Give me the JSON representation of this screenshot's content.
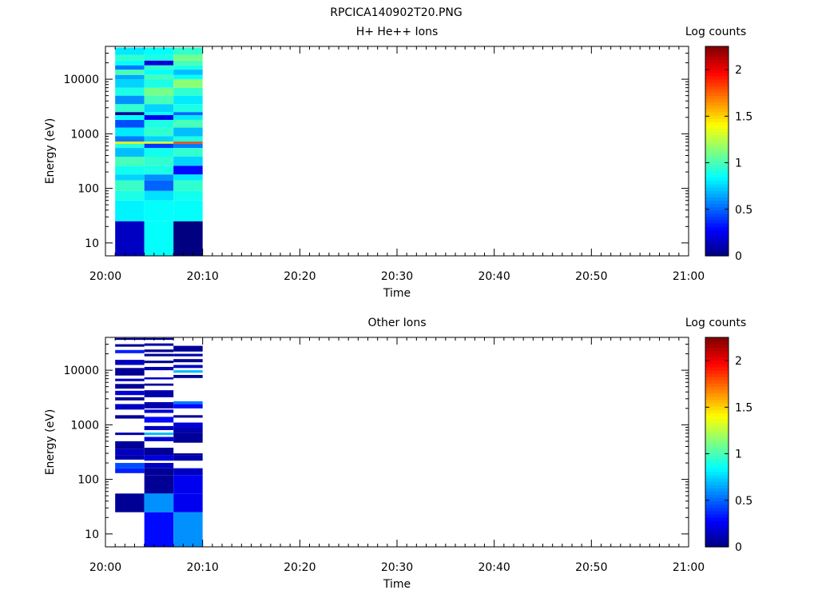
{
  "figure": {
    "title": "RPCICA140902T20.PNG"
  },
  "chart_data": [
    {
      "type": "heatmap",
      "title": "H+ He++ Ions",
      "xlabel": "Time",
      "ylabel": "Energy (eV)",
      "x_tick_labels": [
        "20:00",
        "20:10",
        "20:20",
        "20:30",
        "20:40",
        "20:50",
        "21:00"
      ],
      "xlim": [
        "20:00",
        "21:00"
      ],
      "y_scale": "log",
      "y_tick_labels": [
        "10",
        "100",
        "1000",
        "10000"
      ],
      "ylim": [
        5.8,
        40000
      ],
      "colorbar": {
        "label": "Log counts",
        "range": [
          0,
          2.25
        ],
        "tick_labels": [
          "0",
          "0.5",
          "1",
          "1.5",
          "2"
        ],
        "colormap": "jet"
      },
      "time_bins": [
        "20:01 - 20:04",
        "20:04 - 20:07",
        "20:07 - 20:10"
      ],
      "cells": [
        {
          "bin": 0,
          "e": [
            5.8,
            25
          ],
          "v": 0.15
        },
        {
          "bin": 1,
          "e": [
            5.8,
            25
          ],
          "v": 0.85
        },
        {
          "bin": 2,
          "e": [
            5.8,
            25
          ],
          "v": 0.0
        },
        {
          "bin": 0,
          "e": [
            25,
            60
          ],
          "v": 0.82
        },
        {
          "bin": 1,
          "e": [
            25,
            60
          ],
          "v": 0.85
        },
        {
          "bin": 2,
          "e": [
            25,
            60
          ],
          "v": 0.85
        },
        {
          "bin": 0,
          "e": [
            60,
            90
          ],
          "v": 0.9
        },
        {
          "bin": 1,
          "e": [
            60,
            90
          ],
          "v": 0.78
        },
        {
          "bin": 2,
          "e": [
            60,
            90
          ],
          "v": 0.88
        },
        {
          "bin": 0,
          "e": [
            90,
            140
          ],
          "v": 0.97
        },
        {
          "bin": 1,
          "e": [
            90,
            140
          ],
          "v": 0.5
        },
        {
          "bin": 2,
          "e": [
            90,
            140
          ],
          "v": 0.95
        },
        {
          "bin": 0,
          "e": [
            140,
            180
          ],
          "v": 0.75
        },
        {
          "bin": 1,
          "e": [
            140,
            180
          ],
          "v": 0.6
        },
        {
          "bin": 2,
          "e": [
            140,
            180
          ],
          "v": 0.8
        },
        {
          "bin": 0,
          "e": [
            180,
            260
          ],
          "v": 0.88
        },
        {
          "bin": 1,
          "e": [
            180,
            260
          ],
          "v": 0.9
        },
        {
          "bin": 2,
          "e": [
            180,
            260
          ],
          "v": 0.3
        },
        {
          "bin": 0,
          "e": [
            260,
            380
          ],
          "v": 1.0
        },
        {
          "bin": 1,
          "e": [
            260,
            380
          ],
          "v": 0.95
        },
        {
          "bin": 2,
          "e": [
            260,
            380
          ],
          "v": 0.75
        },
        {
          "bin": 0,
          "e": [
            380,
            550
          ],
          "v": 0.7
        },
        {
          "bin": 1,
          "e": [
            380,
            550
          ],
          "v": 0.88
        },
        {
          "bin": 2,
          "e": [
            380,
            550
          ],
          "v": 0.95
        },
        {
          "bin": 0,
          "e": [
            550,
            660
          ],
          "v": 0.92
        },
        {
          "bin": 1,
          "e": [
            550,
            660
          ],
          "v": 0.4
        },
        {
          "bin": 2,
          "e": [
            550,
            660
          ],
          "v": 0.55
        },
        {
          "bin": 0,
          "e": [
            660,
            720
          ],
          "v": 1.45
        },
        {
          "bin": 1,
          "e": [
            660,
            720
          ],
          "v": 1.35
        },
        {
          "bin": 2,
          "e": [
            660,
            720
          ],
          "v": 1.8
        },
        {
          "bin": 0,
          "e": [
            720,
            900
          ],
          "v": 0.55
        },
        {
          "bin": 1,
          "e": [
            720,
            900
          ],
          "v": 0.75
        },
        {
          "bin": 2,
          "e": [
            720,
            900
          ],
          "v": 0.9
        },
        {
          "bin": 0,
          "e": [
            900,
            1300
          ],
          "v": 0.8
        },
        {
          "bin": 1,
          "e": [
            900,
            1300
          ],
          "v": 0.95
        },
        {
          "bin": 2,
          "e": [
            900,
            1300
          ],
          "v": 0.7
        },
        {
          "bin": 0,
          "e": [
            1300,
            1800
          ],
          "v": 0.45
        },
        {
          "bin": 1,
          "e": [
            1300,
            1800
          ],
          "v": 0.9
        },
        {
          "bin": 2,
          "e": [
            1300,
            1800
          ],
          "v": 1.0
        },
        {
          "bin": 0,
          "e": [
            1800,
            2200
          ],
          "v": 0.85
        },
        {
          "bin": 1,
          "e": [
            1800,
            2200
          ],
          "v": 0.25
        },
        {
          "bin": 2,
          "e": [
            1800,
            2200
          ],
          "v": 0.8
        },
        {
          "bin": 0,
          "e": [
            2200,
            2500
          ],
          "v": 0.05
        },
        {
          "bin": 1,
          "e": [
            2200,
            2500
          ],
          "v": 0.85
        },
        {
          "bin": 2,
          "e": [
            2200,
            2500
          ],
          "v": 0.5
        },
        {
          "bin": 0,
          "e": [
            2500,
            3500
          ],
          "v": 0.95
        },
        {
          "bin": 1,
          "e": [
            2500,
            3500
          ],
          "v": 0.75
        },
        {
          "bin": 2,
          "e": [
            2500,
            3500
          ],
          "v": 0.9
        },
        {
          "bin": 0,
          "e": [
            3500,
            5000
          ],
          "v": 0.6
        },
        {
          "bin": 1,
          "e": [
            3500,
            5000
          ],
          "v": 1.0
        },
        {
          "bin": 2,
          "e": [
            3500,
            5000
          ],
          "v": 0.8
        },
        {
          "bin": 0,
          "e": [
            5000,
            7000
          ],
          "v": 0.9
        },
        {
          "bin": 1,
          "e": [
            5000,
            7000
          ],
          "v": 1.1
        },
        {
          "bin": 2,
          "e": [
            5000,
            7000
          ],
          "v": 0.95
        },
        {
          "bin": 0,
          "e": [
            7000,
            10000
          ],
          "v": 0.75
        },
        {
          "bin": 1,
          "e": [
            7000,
            10000
          ],
          "v": 0.9
        },
        {
          "bin": 2,
          "e": [
            7000,
            10000
          ],
          "v": 1.15
        },
        {
          "bin": 0,
          "e": [
            10000,
            12000
          ],
          "v": 0.65
        },
        {
          "bin": 1,
          "e": [
            10000,
            12000
          ],
          "v": 1.0
        },
        {
          "bin": 2,
          "e": [
            10000,
            12000
          ],
          "v": 0.85
        },
        {
          "bin": 0,
          "e": [
            12000,
            15000
          ],
          "v": 1.0
        },
        {
          "bin": 1,
          "e": [
            12000,
            15000
          ],
          "v": 0.85
        },
        {
          "bin": 2,
          "e": [
            12000,
            15000
          ],
          "v": 0.7
        },
        {
          "bin": 0,
          "e": [
            15000,
            18000
          ],
          "v": 0.55
        },
        {
          "bin": 1,
          "e": [
            15000,
            18000
          ],
          "v": 0.95
        },
        {
          "bin": 2,
          "e": [
            15000,
            18000
          ],
          "v": 0.9
        },
        {
          "bin": 0,
          "e": [
            18000,
            22000
          ],
          "v": 0.85
        },
        {
          "bin": 1,
          "e": [
            18000,
            22000
          ],
          "v": 0.2
        },
        {
          "bin": 2,
          "e": [
            18000,
            22000
          ],
          "v": 1.0
        },
        {
          "bin": 0,
          "e": [
            22000,
            28000
          ],
          "v": 0.95
        },
        {
          "bin": 1,
          "e": [
            22000,
            28000
          ],
          "v": 0.9
        },
        {
          "bin": 2,
          "e": [
            22000,
            28000
          ],
          "v": 1.1
        },
        {
          "bin": 0,
          "e": [
            28000,
            38000
          ],
          "v": 0.8
        },
        {
          "bin": 1,
          "e": [
            28000,
            38000
          ],
          "v": 0.85
        },
        {
          "bin": 2,
          "e": [
            28000,
            38000
          ],
          "v": 0.95
        }
      ]
    },
    {
      "type": "heatmap",
      "title": "Other Ions",
      "xlabel": "Time",
      "ylabel": "Energy (eV)",
      "x_tick_labels": [
        "20:00",
        "20:10",
        "20:20",
        "20:30",
        "20:40",
        "20:50",
        "21:00"
      ],
      "xlim": [
        "20:00",
        "21:00"
      ],
      "y_scale": "log",
      "y_tick_labels": [
        "10",
        "100",
        "1000",
        "10000"
      ],
      "ylim": [
        5.8,
        40000
      ],
      "colorbar": {
        "label": "Log counts",
        "range": [
          0,
          2.25
        ],
        "tick_labels": [
          "0",
          "0.5",
          "1",
          "1.5",
          "2"
        ],
        "colormap": "jet"
      },
      "time_bins": [
        "20:01 - 20:04",
        "20:04 - 20:07",
        "20:07 - 20:10"
      ],
      "cells": [
        {
          "bin": 1,
          "e": [
            5.8,
            25
          ],
          "v": 0.3
        },
        {
          "bin": 2,
          "e": [
            5.8,
            25
          ],
          "v": 0.6
        },
        {
          "bin": 0,
          "e": [
            25,
            55
          ],
          "v": 0.05
        },
        {
          "bin": 1,
          "e": [
            25,
            55
          ],
          "v": 0.6
        },
        {
          "bin": 2,
          "e": [
            25,
            55
          ],
          "v": 0.25
        },
        {
          "bin": 1,
          "e": [
            55,
            120
          ],
          "v": 0.05
        },
        {
          "bin": 2,
          "e": [
            55,
            120
          ],
          "v": 0.25
        },
        {
          "bin": 0,
          "e": [
            130,
            160
          ],
          "v": 0.35
        },
        {
          "bin": 1,
          "e": [
            120,
            160
          ],
          "v": 0.05
        },
        {
          "bin": 2,
          "e": [
            120,
            160
          ],
          "v": 0.15
        },
        {
          "bin": 0,
          "e": [
            160,
            200
          ],
          "v": 0.45
        },
        {
          "bin": 1,
          "e": [
            160,
            200
          ],
          "v": 0.15
        },
        {
          "bin": 0,
          "e": [
            230,
            280
          ],
          "v": 0.1
        },
        {
          "bin": 1,
          "e": [
            220,
            280
          ],
          "v": 0.2
        },
        {
          "bin": 2,
          "e": [
            220,
            280
          ],
          "v": 0.1
        },
        {
          "bin": 0,
          "e": [
            280,
            360
          ],
          "v": 0.15
        },
        {
          "bin": 1,
          "e": [
            280,
            380
          ],
          "v": 0.05
        },
        {
          "bin": 2,
          "e": [
            280,
            300
          ],
          "v": 0.05
        },
        {
          "bin": 0,
          "e": [
            360,
            500
          ],
          "v": 0.05
        },
        {
          "bin": 1,
          "e": [
            500,
            600
          ],
          "v": 0.2
        },
        {
          "bin": 2,
          "e": [
            470,
            700
          ],
          "v": 0.05
        },
        {
          "bin": 0,
          "e": [
            650,
            720
          ],
          "v": 0.1
        },
        {
          "bin": 1,
          "e": [
            650,
            720
          ],
          "v": 0.7
        },
        {
          "bin": 2,
          "e": [
            700,
            900
          ],
          "v": 0.1
        },
        {
          "bin": 1,
          "e": [
            800,
            950
          ],
          "v": 0.15
        },
        {
          "bin": 2,
          "e": [
            900,
            1100
          ],
          "v": 0.2
        },
        {
          "bin": 1,
          "e": [
            1100,
            1400
          ],
          "v": 0.3
        },
        {
          "bin": 2,
          "e": [
            1350,
            1500
          ],
          "v": 0.05
        },
        {
          "bin": 0,
          "e": [
            1300,
            1500
          ],
          "v": 0.05
        },
        {
          "bin": 1,
          "e": [
            1650,
            1900
          ],
          "v": 0.2
        },
        {
          "bin": 0,
          "e": [
            1900,
            2400
          ],
          "v": 0.15
        },
        {
          "bin": 1,
          "e": [
            2000,
            2600
          ],
          "v": 0.1
        },
        {
          "bin": 2,
          "e": [
            2000,
            2400
          ],
          "v": 0.3
        },
        {
          "bin": 0,
          "e": [
            2800,
            3200
          ],
          "v": 0.05
        },
        {
          "bin": 2,
          "e": [
            2400,
            2700
          ],
          "v": 0.55
        },
        {
          "bin": 0,
          "e": [
            3500,
            4200
          ],
          "v": 0.2
        },
        {
          "bin": 1,
          "e": [
            3200,
            4300
          ],
          "v": 0.1
        },
        {
          "bin": 0,
          "e": [
            4600,
            5600
          ],
          "v": 0.05
        },
        {
          "bin": 1,
          "e": [
            5200,
            5700
          ],
          "v": 0.05
        },
        {
          "bin": 0,
          "e": [
            6300,
            7000
          ],
          "v": 0.15
        },
        {
          "bin": 1,
          "e": [
            6800,
            7400
          ],
          "v": 0.15
        },
        {
          "bin": 2,
          "e": [
            7200,
            8200
          ],
          "v": 0.05
        },
        {
          "bin": 0,
          "e": [
            8000,
            11000
          ],
          "v": 0.05
        },
        {
          "bin": 2,
          "e": [
            9000,
            10000
          ],
          "v": 0.7
        },
        {
          "bin": 1,
          "e": [
            10000,
            11500
          ],
          "v": 0.1
        },
        {
          "bin": 2,
          "e": [
            11000,
            12500
          ],
          "v": 0.15
        },
        {
          "bin": 0,
          "e": [
            12500,
            15500
          ],
          "v": 0.15
        },
        {
          "bin": 1,
          "e": [
            13500,
            15000
          ],
          "v": 0.05
        },
        {
          "bin": 2,
          "e": [
            14000,
            16000
          ],
          "v": 0.05
        },
        {
          "bin": 1,
          "e": [
            18000,
            20000
          ],
          "v": 0.05
        },
        {
          "bin": 2,
          "e": [
            18000,
            20000
          ],
          "v": 0.1
        },
        {
          "bin": 0,
          "e": [
            20500,
            23500
          ],
          "v": 0.35
        },
        {
          "bin": 1,
          "e": [
            21500,
            24000
          ],
          "v": 0.05
        },
        {
          "bin": 2,
          "e": [
            22000,
            28000
          ],
          "v": 0.05
        },
        {
          "bin": 0,
          "e": [
            27000,
            30000
          ],
          "v": 0.05
        },
        {
          "bin": 1,
          "e": [
            28000,
            31000
          ],
          "v": 0.1
        },
        {
          "bin": 0,
          "e": [
            36000,
            39000
          ],
          "v": 0.05
        },
        {
          "bin": 1,
          "e": [
            36000,
            39000
          ],
          "v": 0.05
        }
      ]
    }
  ]
}
